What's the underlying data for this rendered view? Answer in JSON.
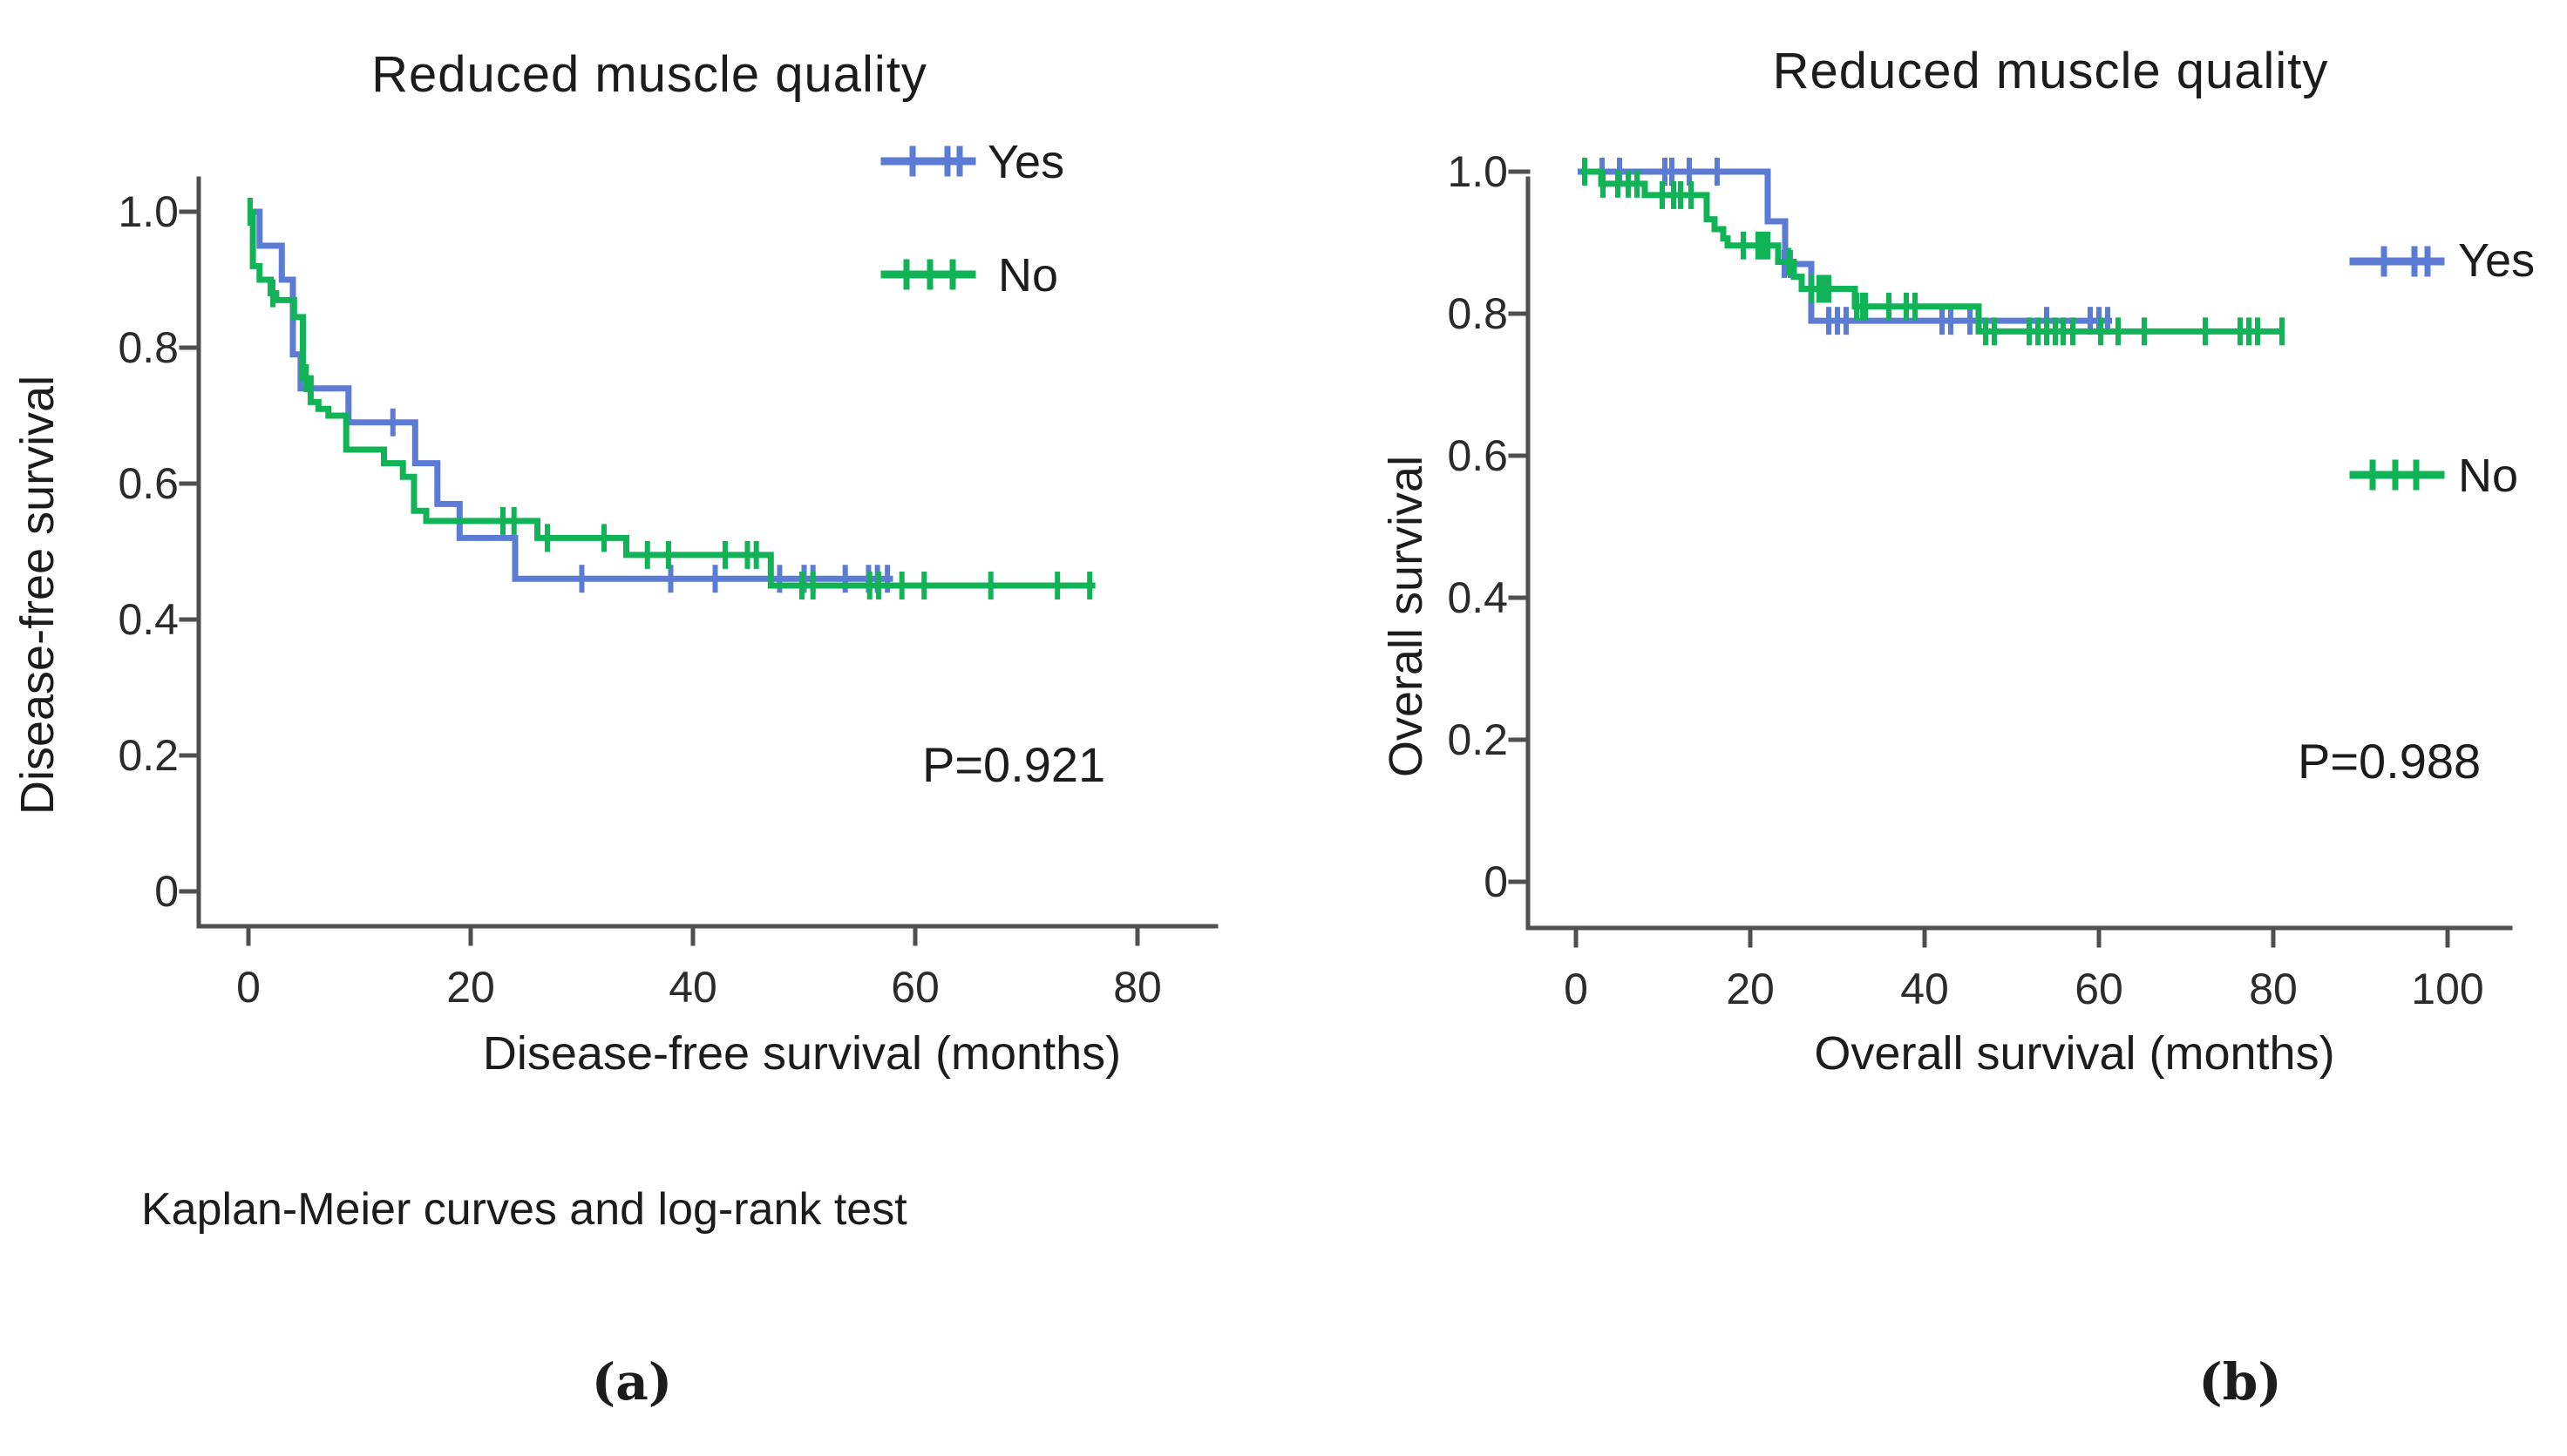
{
  "figure": {
    "caption": "Kaplan-Meier curves and log-rank test",
    "panel_a_tag": "(a)",
    "panel_b_tag": "(b)"
  },
  "colors": {
    "yes": "#5b7bd5",
    "no": "#10b355",
    "axis": "#4f4f4f",
    "tick_text": "#2b2b2b",
    "text": "#1c1c1c"
  },
  "chart_data": [
    {
      "type": "line",
      "subtype": "kaplan-meier-step",
      "title": "Reduced muscle quality",
      "xlabel": "Disease-free survival (months)",
      "ylabel": "Disease-free survival",
      "p_value_label": "P=0.921",
      "legend_position": "top-right",
      "grid": false,
      "xlim": [
        0,
        85
      ],
      "ylim": [
        0,
        1.0
      ],
      "xticks": [
        0,
        20,
        40,
        60,
        80
      ],
      "yticks": [
        1.0,
        0.8,
        0.6,
        0.4,
        0.2,
        0
      ],
      "series": [
        {
          "name": "Yes",
          "color_key": "yes",
          "points": [
            [
              0.5,
              1.0
            ],
            [
              1,
              0.95
            ],
            [
              3,
              0.9
            ],
            [
              4,
              0.79
            ],
            [
              4.7,
              0.74
            ],
            [
              9,
              0.69
            ],
            [
              15,
              0.63
            ],
            [
              17,
              0.57
            ],
            [
              19,
              0.52
            ],
            [
              24,
              0.46
            ]
          ],
          "end": 58,
          "censors": [
            [
              13,
              0.69
            ],
            [
              30,
              0.46
            ],
            [
              38,
              0.46
            ],
            [
              42,
              0.46
            ],
            [
              47.8,
              0.46
            ],
            [
              50,
              0.46
            ],
            [
              50.8,
              0.46
            ],
            [
              53.7,
              0.46
            ],
            [
              55.8,
              0.46
            ],
            [
              56.6,
              0.46
            ],
            [
              57.5,
              0.46
            ]
          ]
        },
        {
          "name": "No",
          "color_key": "no",
          "points": [
            [
              0,
              1.0
            ],
            [
              0.4,
              0.92
            ],
            [
              1,
              0.9
            ],
            [
              2,
              0.88
            ],
            [
              2.5,
              0.87
            ],
            [
              4.1,
              0.845
            ],
            [
              4.9,
              0.755
            ],
            [
              5.6,
              0.72
            ],
            [
              6.3,
              0.71
            ],
            [
              7.2,
              0.7
            ],
            [
              8.8,
              0.65
            ],
            [
              12.2,
              0.63
            ],
            [
              13.9,
              0.61
            ],
            [
              14.9,
              0.56
            ],
            [
              16,
              0.545
            ],
            [
              26,
              0.52
            ],
            [
              34,
              0.495
            ],
            [
              47,
              0.45
            ]
          ],
          "end": 76.2,
          "censors": [
            [
              0.15,
              1.0
            ],
            [
              2.2,
              0.88
            ],
            [
              5.2,
              0.755
            ],
            [
              22.9,
              0.545
            ],
            [
              23.9,
              0.545
            ],
            [
              26.9,
              0.52
            ],
            [
              32,
              0.52
            ],
            [
              35.9,
              0.495
            ],
            [
              37.8,
              0.495
            ],
            [
              42.9,
              0.495
            ],
            [
              44.9,
              0.495
            ],
            [
              45.7,
              0.495
            ],
            [
              49.8,
              0.45
            ],
            [
              50.8,
              0.45
            ],
            [
              55.9,
              0.45
            ],
            [
              56.7,
              0.45
            ],
            [
              58.8,
              0.45
            ],
            [
              60.8,
              0.45
            ],
            [
              66.8,
              0.45
            ],
            [
              72.8,
              0.45
            ],
            [
              75.7,
              0.45
            ]
          ]
        }
      ]
    },
    {
      "type": "line",
      "subtype": "kaplan-meier-step",
      "title": "Reduced muscle quality",
      "xlabel": "Overall survival (months)",
      "ylabel": "Overall survival",
      "p_value_label": "P=0.988",
      "legend_position": "top-right",
      "grid": false,
      "xlim": [
        0,
        105
      ],
      "ylim": [
        0,
        1.0
      ],
      "xticks": [
        0,
        20,
        40,
        60,
        80,
        100
      ],
      "yticks": [
        1.0,
        0.8,
        0.6,
        0.4,
        0.2,
        0
      ],
      "series": [
        {
          "name": "Yes",
          "color_key": "yes",
          "points": [
            [
              0.2,
              1.0
            ],
            [
              22,
              0.93
            ],
            [
              24,
              0.87
            ],
            [
              27,
              0.79
            ]
          ],
          "end": 61.5,
          "censors": [
            [
              3,
              1.0
            ],
            [
              5,
              1.0
            ],
            [
              10.2,
              1.0
            ],
            [
              11,
              1.0
            ],
            [
              13,
              1.0
            ],
            [
              16.2,
              1.0
            ],
            [
              23.9,
              0.87
            ],
            [
              24.6,
              0.87
            ],
            [
              29,
              0.79
            ],
            [
              30,
              0.79
            ],
            [
              31,
              0.79
            ],
            [
              42,
              0.79
            ],
            [
              43,
              0.79
            ],
            [
              45.2,
              0.79
            ],
            [
              54,
              0.79
            ],
            [
              59,
              0.79
            ],
            [
              60,
              0.79
            ],
            [
              61,
              0.79
            ]
          ]
        },
        {
          "name": "No",
          "color_key": "no",
          "points": [
            [
              0.5,
              1.0
            ],
            [
              2.9,
              0.983
            ],
            [
              7.9,
              0.967
            ],
            [
              15,
              0.933
            ],
            [
              15.9,
              0.919
            ],
            [
              16.9,
              0.906
            ],
            [
              17.4,
              0.896
            ],
            [
              23.2,
              0.873
            ],
            [
              25,
              0.852
            ],
            [
              25.9,
              0.835
            ],
            [
              32,
              0.81
            ],
            [
              46.2,
              0.775
            ]
          ],
          "end": 81.2,
          "censors": [
            [
              1,
              1.0
            ],
            [
              3.1,
              0.983
            ],
            [
              4.8,
              0.983
            ],
            [
              6,
              0.983
            ],
            [
              7,
              0.983
            ],
            [
              9.9,
              0.967
            ],
            [
              11.2,
              0.967
            ],
            [
              12,
              0.967
            ],
            [
              13.2,
              0.967
            ],
            [
              19.2,
              0.896
            ],
            [
              20.9,
              0.896
            ],
            [
              21.4,
              0.896
            ],
            [
              22,
              0.896
            ],
            [
              24.4,
              0.873
            ],
            [
              27,
              0.835
            ],
            [
              27.9,
              0.835
            ],
            [
              28.4,
              0.835
            ],
            [
              29,
              0.835
            ],
            [
              32.2,
              0.81
            ],
            [
              32.9,
              0.81
            ],
            [
              33.2,
              0.81
            ],
            [
              35.9,
              0.81
            ],
            [
              37.9,
              0.81
            ],
            [
              38.9,
              0.81
            ],
            [
              47,
              0.775
            ],
            [
              48,
              0.775
            ],
            [
              52,
              0.775
            ],
            [
              53,
              0.775
            ],
            [
              54,
              0.775
            ],
            [
              55,
              0.775
            ],
            [
              55.9,
              0.775
            ],
            [
              57,
              0.775
            ],
            [
              60.2,
              0.775
            ],
            [
              62.2,
              0.775
            ],
            [
              65.2,
              0.775
            ],
            [
              72.2,
              0.775
            ],
            [
              76.2,
              0.775
            ],
            [
              77.2,
              0.775
            ],
            [
              78.2,
              0.775
            ],
            [
              81,
              0.775
            ]
          ]
        }
      ]
    }
  ]
}
